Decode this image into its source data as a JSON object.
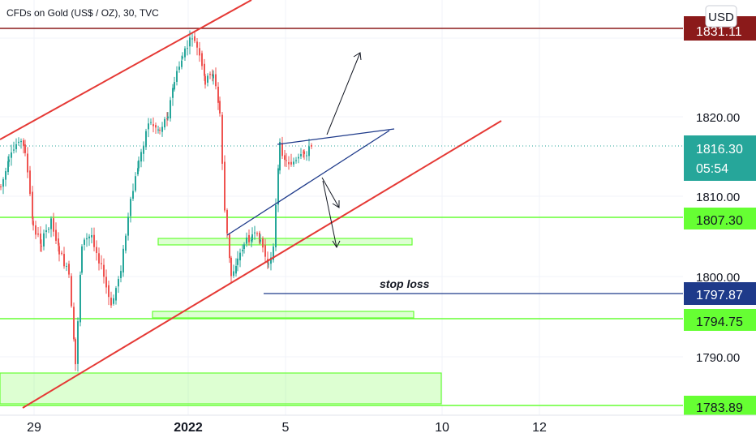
{
  "header": {
    "symbol_title": "CFDs on Gold (US$ / OZ), 30, TVC"
  },
  "currency_button": {
    "label": "USD"
  },
  "chart_data": {
    "type": "candlestick",
    "title": "CFDs on Gold (US$ / OZ), 30, TVC",
    "y_axis": {
      "ylim": [
        1783.0,
        1833.5
      ],
      "ticks": [
        "1820.00",
        "1810.00",
        "1800.00",
        "1790.00"
      ],
      "position": "right"
    },
    "x_axis": {
      "ticks": [
        "29",
        "2022",
        "5",
        "10",
        "12"
      ]
    },
    "grid": true,
    "price_labels": [
      {
        "id": "top",
        "value": 1831.11,
        "text": "1831.11",
        "color": "#8B1A1A"
      },
      {
        "id": "current",
        "value": 1816.3,
        "text": "1816.30",
        "subtext": "05:54",
        "color": "#26A69A"
      },
      {
        "id": "support-1",
        "value": 1807.3,
        "text": "1807.30",
        "color": "#66FF33"
      },
      {
        "id": "stop",
        "value": 1797.87,
        "text": "1797.87",
        "color": "#1E3A8A"
      },
      {
        "id": "support-2",
        "value": 1794.75,
        "text": "1794.75",
        "color": "#66FF33"
      },
      {
        "id": "bottom",
        "value": 1783.89,
        "text": "1783.89",
        "color": "#66FF33"
      }
    ],
    "annotations": [
      {
        "type": "text",
        "text": "stop loss"
      },
      {
        "type": "channel",
        "color": "#E53935",
        "desc": "ascending red channel"
      },
      {
        "type": "wedge",
        "color": "#1E3A8A",
        "desc": "rising wedge"
      },
      {
        "type": "zones",
        "color": "#66FF33",
        "desc": "green support zones"
      }
    ],
    "colors": {
      "up": "#26A69A",
      "down": "#EF5350"
    }
  }
}
